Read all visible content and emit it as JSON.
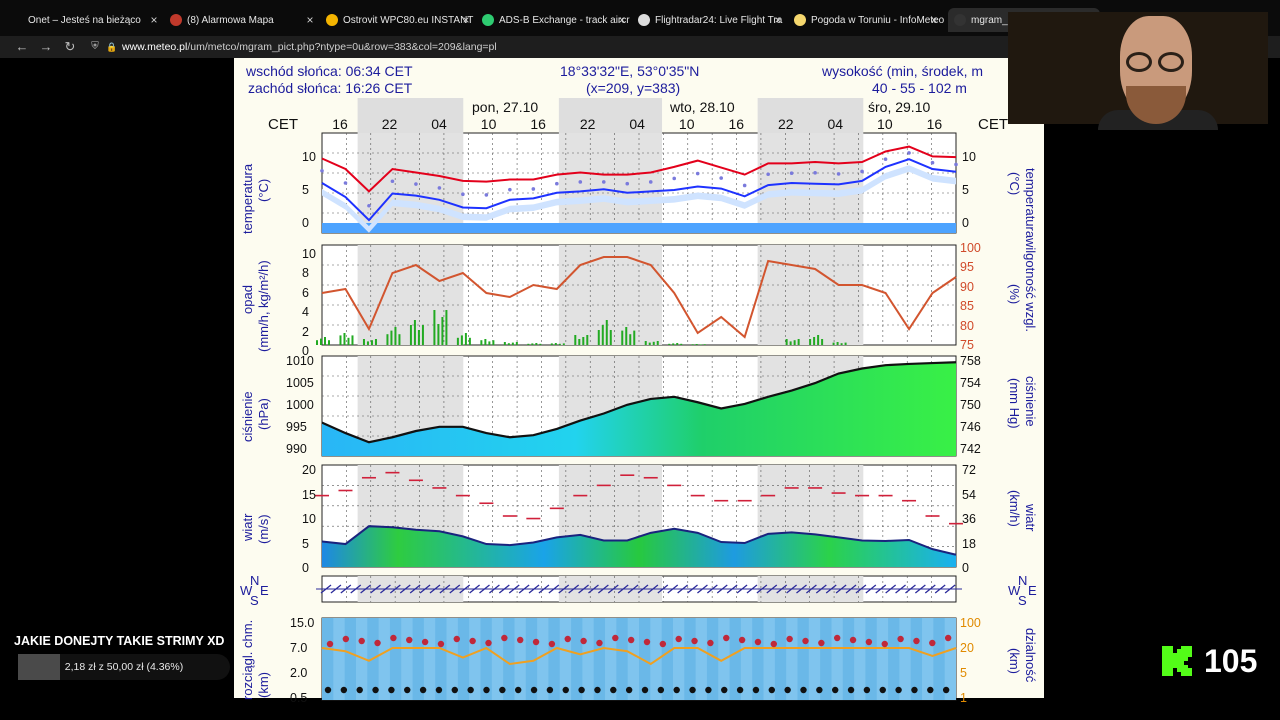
{
  "browser": {
    "tabs": [
      {
        "title": "Onet – Jesteś na bieżąco",
        "fav_color": "#1a1a1a"
      },
      {
        "title": "(8) Alarmowa Mapa",
        "fav_color": "#c0392b"
      },
      {
        "title": "Ostrovit WPC80.eu INSTANT",
        "fav_color": "#f4b400"
      },
      {
        "title": "ADS-B Exchange - track aircr",
        "fav_color": "#2ecc71"
      },
      {
        "title": "Flightradar24: Live Flight Tra",
        "fav_color": "#dddddd"
      },
      {
        "title": "Pogoda w Toruniu - InfoMeteo",
        "fav_color": "#f5d76e"
      },
      {
        "title": "mgram_pict.p",
        "fav_color": "#333333"
      }
    ],
    "close_glyph": "×",
    "url_host": "www.meteo.pl",
    "url_path": "/um/metco/mgram_pict.php?ntype=0u&row=383&col=209&lang=pl"
  },
  "meteogram": {
    "header": {
      "sunrise": "wschód słońca: 06:34 CET",
      "sunset": "zachód słońca: 16:26 CET",
      "coords": "18°33'32\"E, 53°0'35\"N",
      "grid": "(x=209, y=383)",
      "elevation_label": "wysokość (min, środek, m",
      "elevation_values": "40 - 55 - 102 m"
    },
    "days": [
      "pon, 27.10",
      "wto, 28.10",
      "śro, 29.10"
    ],
    "hours": [
      "16",
      "22",
      "04",
      "10",
      "16",
      "22",
      "04",
      "10",
      "16",
      "22",
      "04",
      "10",
      "16"
    ],
    "timezone": "CET",
    "labels": {
      "temperatura": "temperatura",
      "temp_unit": "(°C)",
      "opad": "opad",
      "opad_unit": "(mm/h, kg/m²/h)",
      "wilgotnosc": "wilgotność wzgl.",
      "wilg_unit": "(%)",
      "cisnienie": "ciśnienie",
      "hpa": "(hPa)",
      "mmhg": "(mm Hg)",
      "wiatr": "wiatr",
      "ms": "(m/s)",
      "kmh": "(km/h)",
      "rozciagl": "rozciągl. chm.",
      "km": "(km)",
      "dzialnosc": "dzialność",
      "km2": "(km)"
    },
    "compass": {
      "n": "N",
      "e": "E",
      "s": "S",
      "w": "W"
    },
    "temp_ticks": [
      "10",
      "5",
      "0"
    ],
    "precip_ticks": [
      "10",
      "8",
      "6",
      "4",
      "2",
      "0"
    ],
    "humid_ticks": [
      "100",
      "95",
      "90",
      "85",
      "80",
      "75"
    ],
    "press_ticks": [
      "1010",
      "1005",
      "1000",
      "995",
      "990"
    ],
    "mmhg_ticks": [
      "758",
      "754",
      "750",
      "746",
      "742"
    ],
    "wind_ticks": [
      "20",
      "15",
      "10",
      "5",
      "0"
    ],
    "kmh_ticks": [
      "72",
      "54",
      "36",
      "18",
      "0"
    ],
    "cloud_ticks": [
      "15.0",
      "7.0",
      "2.0",
      "0.5"
    ],
    "vis_ticks": [
      "100",
      "20",
      "5",
      "1"
    ],
    "series": {
      "temp_max": [
        9.5,
        8,
        4.8,
        8,
        7.5,
        7,
        6.3,
        6.2,
        6.5,
        6.5,
        7.2,
        7.5,
        7.2,
        7.2,
        7.5,
        8.3,
        9.2,
        8.2,
        7.2,
        8.8,
        8.8,
        9.0,
        8.8,
        9,
        10.5,
        11.2,
        9.8,
        9.7
      ],
      "temp_min": [
        6,
        4,
        0.7,
        4.5,
        4.2,
        3.6,
        2.5,
        2.4,
        3.6,
        3.8,
        4.6,
        4.8,
        5.1,
        4.6,
        4.8,
        5.0,
        5.5,
        5.2,
        4.1,
        5.7,
        6.0,
        5.9,
        5.8,
        6.3,
        8.3,
        9.4,
        8.0,
        7.6
      ],
      "humidity": [
        88,
        89,
        79,
        93,
        95,
        91,
        93,
        88,
        87,
        90,
        89,
        95,
        97,
        97,
        95,
        88,
        78,
        82,
        77,
        96,
        95,
        94,
        90,
        90,
        88,
        79,
        88,
        92
      ],
      "pressure": [
        996,
        993.5,
        991.3,
        992.5,
        994,
        995,
        995,
        993.5,
        992.5,
        993,
        994.5,
        996.5,
        998.2,
        1000.3,
        1001.7,
        1002.2,
        1000.9,
        999.4,
        1000.5,
        1002.2,
        1003.7,
        1005.5,
        1007.8,
        1009,
        1009.8,
        1010.1,
        1010.3,
        1010.5
      ],
      "wind": [
        5,
        4.5,
        8,
        7.8,
        7.3,
        7,
        6,
        4.5,
        4.3,
        4.8,
        5.8,
        6.3,
        5.2,
        5.2,
        6.7,
        7.5,
        6.7,
        4.9,
        4.7,
        6.5,
        6.8,
        6.4,
        5.8,
        5.2,
        5.1,
        5.3,
        3.5,
        2.4
      ],
      "gusts": [
        14,
        15,
        17.5,
        18.5,
        17,
        15.5,
        14,
        12.5,
        10,
        9.5,
        11.5,
        14,
        16,
        18,
        17.5,
        16,
        14,
        13,
        13,
        14,
        15.5,
        15.5,
        14.5,
        14,
        14,
        13,
        10,
        8.5
      ],
      "precip": [
        0.8,
        1.2,
        0.6,
        1.8,
        2.5,
        3.5,
        1.2,
        0.6,
        0.3,
        0.2,
        0.2,
        1.0,
        2.5,
        1.8,
        0.4,
        0.2,
        0.1,
        0,
        0,
        0,
        0.6,
        1.0,
        0.3,
        0,
        0,
        0,
        0,
        0
      ]
    }
  },
  "stream": {
    "donate_title": "JAKIE DONEJTY TAKIE STRIMY XD",
    "donate_text": "2,18 zł z 50,00 zł (4.36%)",
    "donate_progress": 0.0436,
    "viewer_count": "105",
    "kick_color": "#53fc18"
  }
}
